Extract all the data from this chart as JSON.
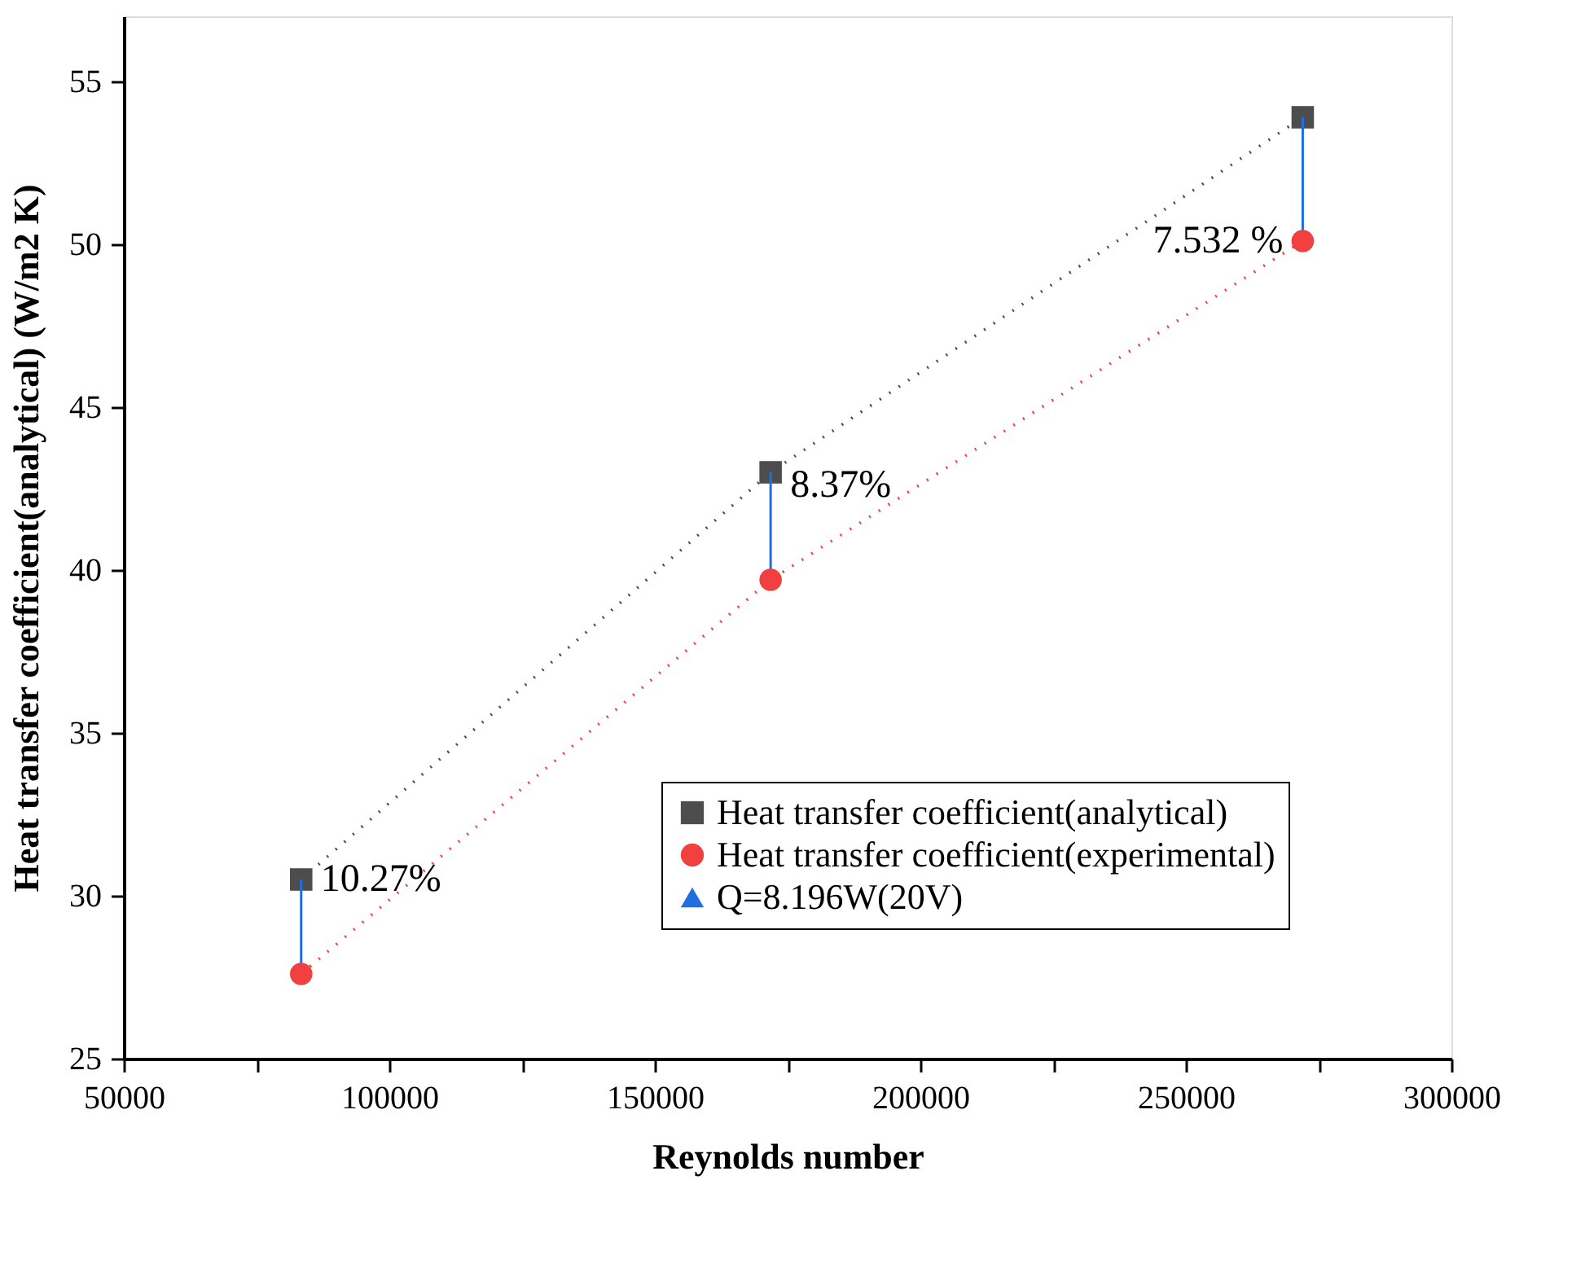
{
  "chart_data": {
    "type": "line",
    "xlabel": "Reynolds number",
    "ylabel": "Heat transfer coefficient(analytical) (W/m2 K)",
    "x": [
      83400,
      171800,
      272000
    ],
    "series": [
      {
        "name": "Heat transfer coefficient(analytical)",
        "color": "#4d4d4d",
        "marker": "square",
        "line_style": "dotted",
        "values": [
          30.5,
          43.0,
          53.9
        ]
      },
      {
        "name": "Heat transfer coefficient(experimental)",
        "color": "#f04040",
        "marker": "circle",
        "line_style": "dotted",
        "values": [
          27.6,
          39.7,
          50.1
        ],
        "errors": [
          [
            27.6,
            30.5
          ],
          [
            39.7,
            43.0
          ],
          [
            50.1,
            53.9
          ]
        ]
      },
      {
        "name": "Q=8.196W(20V)",
        "color": "#1f6fe0",
        "marker": "triangle",
        "line_style": "dotted",
        "values": [
          null,
          null,
          null
        ]
      }
    ],
    "xlim": [
      50000,
      300000
    ],
    "xticks": [
      50000,
      {
        "value": 75000,
        "label": null
      },
      100000,
      {
        "value": 125000,
        "label": null
      },
      150000,
      {
        "value": 175000,
        "label": null
      },
      200000,
      {
        "value": 225000,
        "label": null
      },
      250000,
      {
        "value": 275000,
        "label": null
      },
      300000
    ],
    "ylim": [
      25,
      57
    ],
    "yticks": [
      25,
      30,
      35,
      40,
      45,
      50,
      55
    ],
    "annotations": [
      {
        "text": "10.27%",
        "x": 83400,
        "y": 30.5
      },
      {
        "text": "8.37%",
        "x": 171800,
        "y": 42.6
      },
      {
        "text": "7.532 %",
        "x": 272000,
        "y": 50.1
      }
    ],
    "grid": false,
    "legend": "bottom right"
  }
}
